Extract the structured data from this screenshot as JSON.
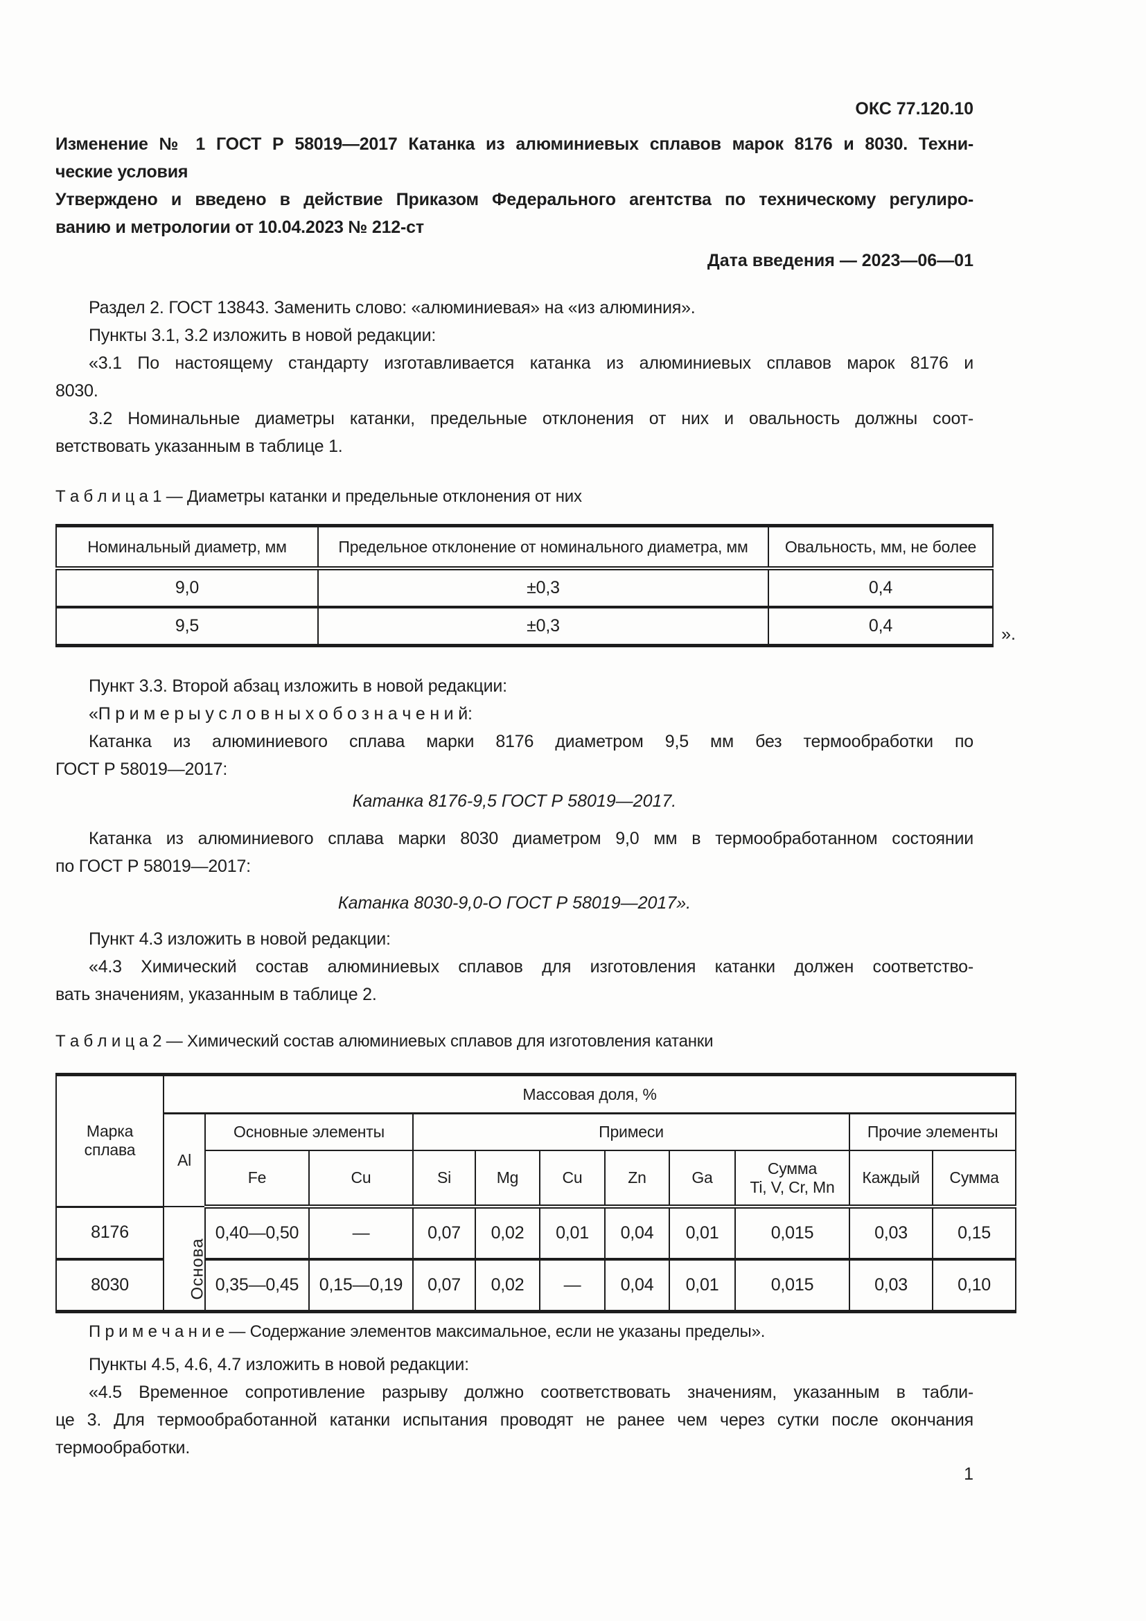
{
  "page": {
    "oks": "ОКС 77.120.10",
    "page_number": "1"
  },
  "header": {
    "title_lines": [
      "Изменение № 1 ГОСТ Р 58019—2017 Катанка из алюминиевых сплавов марок 8176 и 8030. Техни-",
      "ческие условия"
    ],
    "approved_lines": [
      "Утверждено и введено в действие Приказом Федерального агентства по техническому регулиро-",
      "ванию и метрологии от 10.04.2023 № 212-ст"
    ],
    "effective_date": "Дата введения — 2023—06—01"
  },
  "body": {
    "p_section2_lines": [
      "Раздел 2. ГОСТ 13843. Заменить слово: «алюминиевая» на «из алюминия»."
    ],
    "p_items31_lines": [
      "Пункты 3.1, 3.2 изложить в новой редакции:"
    ],
    "p31_lines": [
      "«3.1  По настоящему стандарту изготавливается катанка из алюминиевых сплавов марок 8176 и",
      "8030."
    ],
    "p32_lines": [
      "3.2  Номинальные диаметры катанки, предельные отклонения от них и овальность должны соот-",
      "ветствовать указанным в таблице 1."
    ],
    "p_item33_lines": [
      "Пункт 3.3. Второй абзац изложить в новой редакции:"
    ],
    "p_examples_heading_lines": [
      "«П р и м е р ы   у с л о в н ы х   о б о з н а ч е н и й:"
    ],
    "p_example1_intro_lines": [
      "Катанка из алюминиевого сплава марки 8176 диаметром 9,5 мм без термообработки по",
      "ГОСТ Р 58019—2017:"
    ],
    "example1": "Катанка 8176-9,5 ГОСТ Р 58019—2017.",
    "p_example2_intro_lines": [
      "Катанка из алюминиевого сплава марки 8030 диаметром 9,0 мм в термообработанном состоянии",
      "по ГОСТ Р 58019—2017:"
    ],
    "example2": "Катанка 8030-9,0-О ГОСТ Р 58019—2017».",
    "p_item43_lines": [
      "Пункт 4.3 изложить в новой редакции:"
    ],
    "p43_lines": [
      "«4.3  Химический состав алюминиевых сплавов для изготовления катанки должен соответство-",
      "вать значениям, указанным в таблице 2."
    ],
    "p_items45_lines": [
      "Пункты 4.5, 4.6, 4.7 изложить в новой редакции:"
    ],
    "p45_lines": [
      "«4.5  Временное сопротивление разрыву должно соответствовать значениям, указанным в табли-",
      "це 3. Для термообработанной катанки испытания проводят не ранее чем через сутки после окончания",
      "термообработки."
    ]
  },
  "table1": {
    "caption": "Т а б л и ц а   1 — Диаметры катанки и предельные отклонения от них",
    "headers": [
      "Номинальный диаметр, мм",
      "Предельное отклонение от номинального диаметра, мм",
      "Овальность, мм, не более"
    ],
    "rows": [
      [
        "9,0",
        "±0,3",
        "0,4"
      ],
      [
        "9,5",
        "±0,3",
        "0,4"
      ]
    ],
    "after_mark": "»."
  },
  "table2": {
    "caption": "Т а б л и ц а   2 — Химический состав алюминиевых сплавов для изготовления катанки",
    "col_brand": "Марка\nсплава",
    "mass_fraction": "Массовая доля, %",
    "col_al": "Al",
    "group_main": "Основные элементы",
    "group_impurities": "Примеси",
    "group_other": "Прочие элементы",
    "sub_headers": [
      "Fe",
      "Cu",
      "Si",
      "Mg",
      "Cu",
      "Zn",
      "Ga",
      "Сумма\nTi, V, Cr, Mn",
      "Каждый",
      "Сумма"
    ],
    "al_base": "Основа",
    "rows": [
      {
        "brand": "8176",
        "cells": [
          "0,40—0,50",
          "—",
          "0,07",
          "0,02",
          "0,01",
          "0,04",
          "0,01",
          "0,015",
          "0,03",
          "0,15"
        ]
      },
      {
        "brand": "8030",
        "cells": [
          "0,35—0,45",
          "0,15—0,19",
          "0,07",
          "0,02",
          "—",
          "0,04",
          "0,01",
          "0,015",
          "0,03",
          "0,10"
        ]
      }
    ],
    "note": "П р и м е ч а н и е — Содержание элементов максимальное, если не указаны пределы»."
  }
}
